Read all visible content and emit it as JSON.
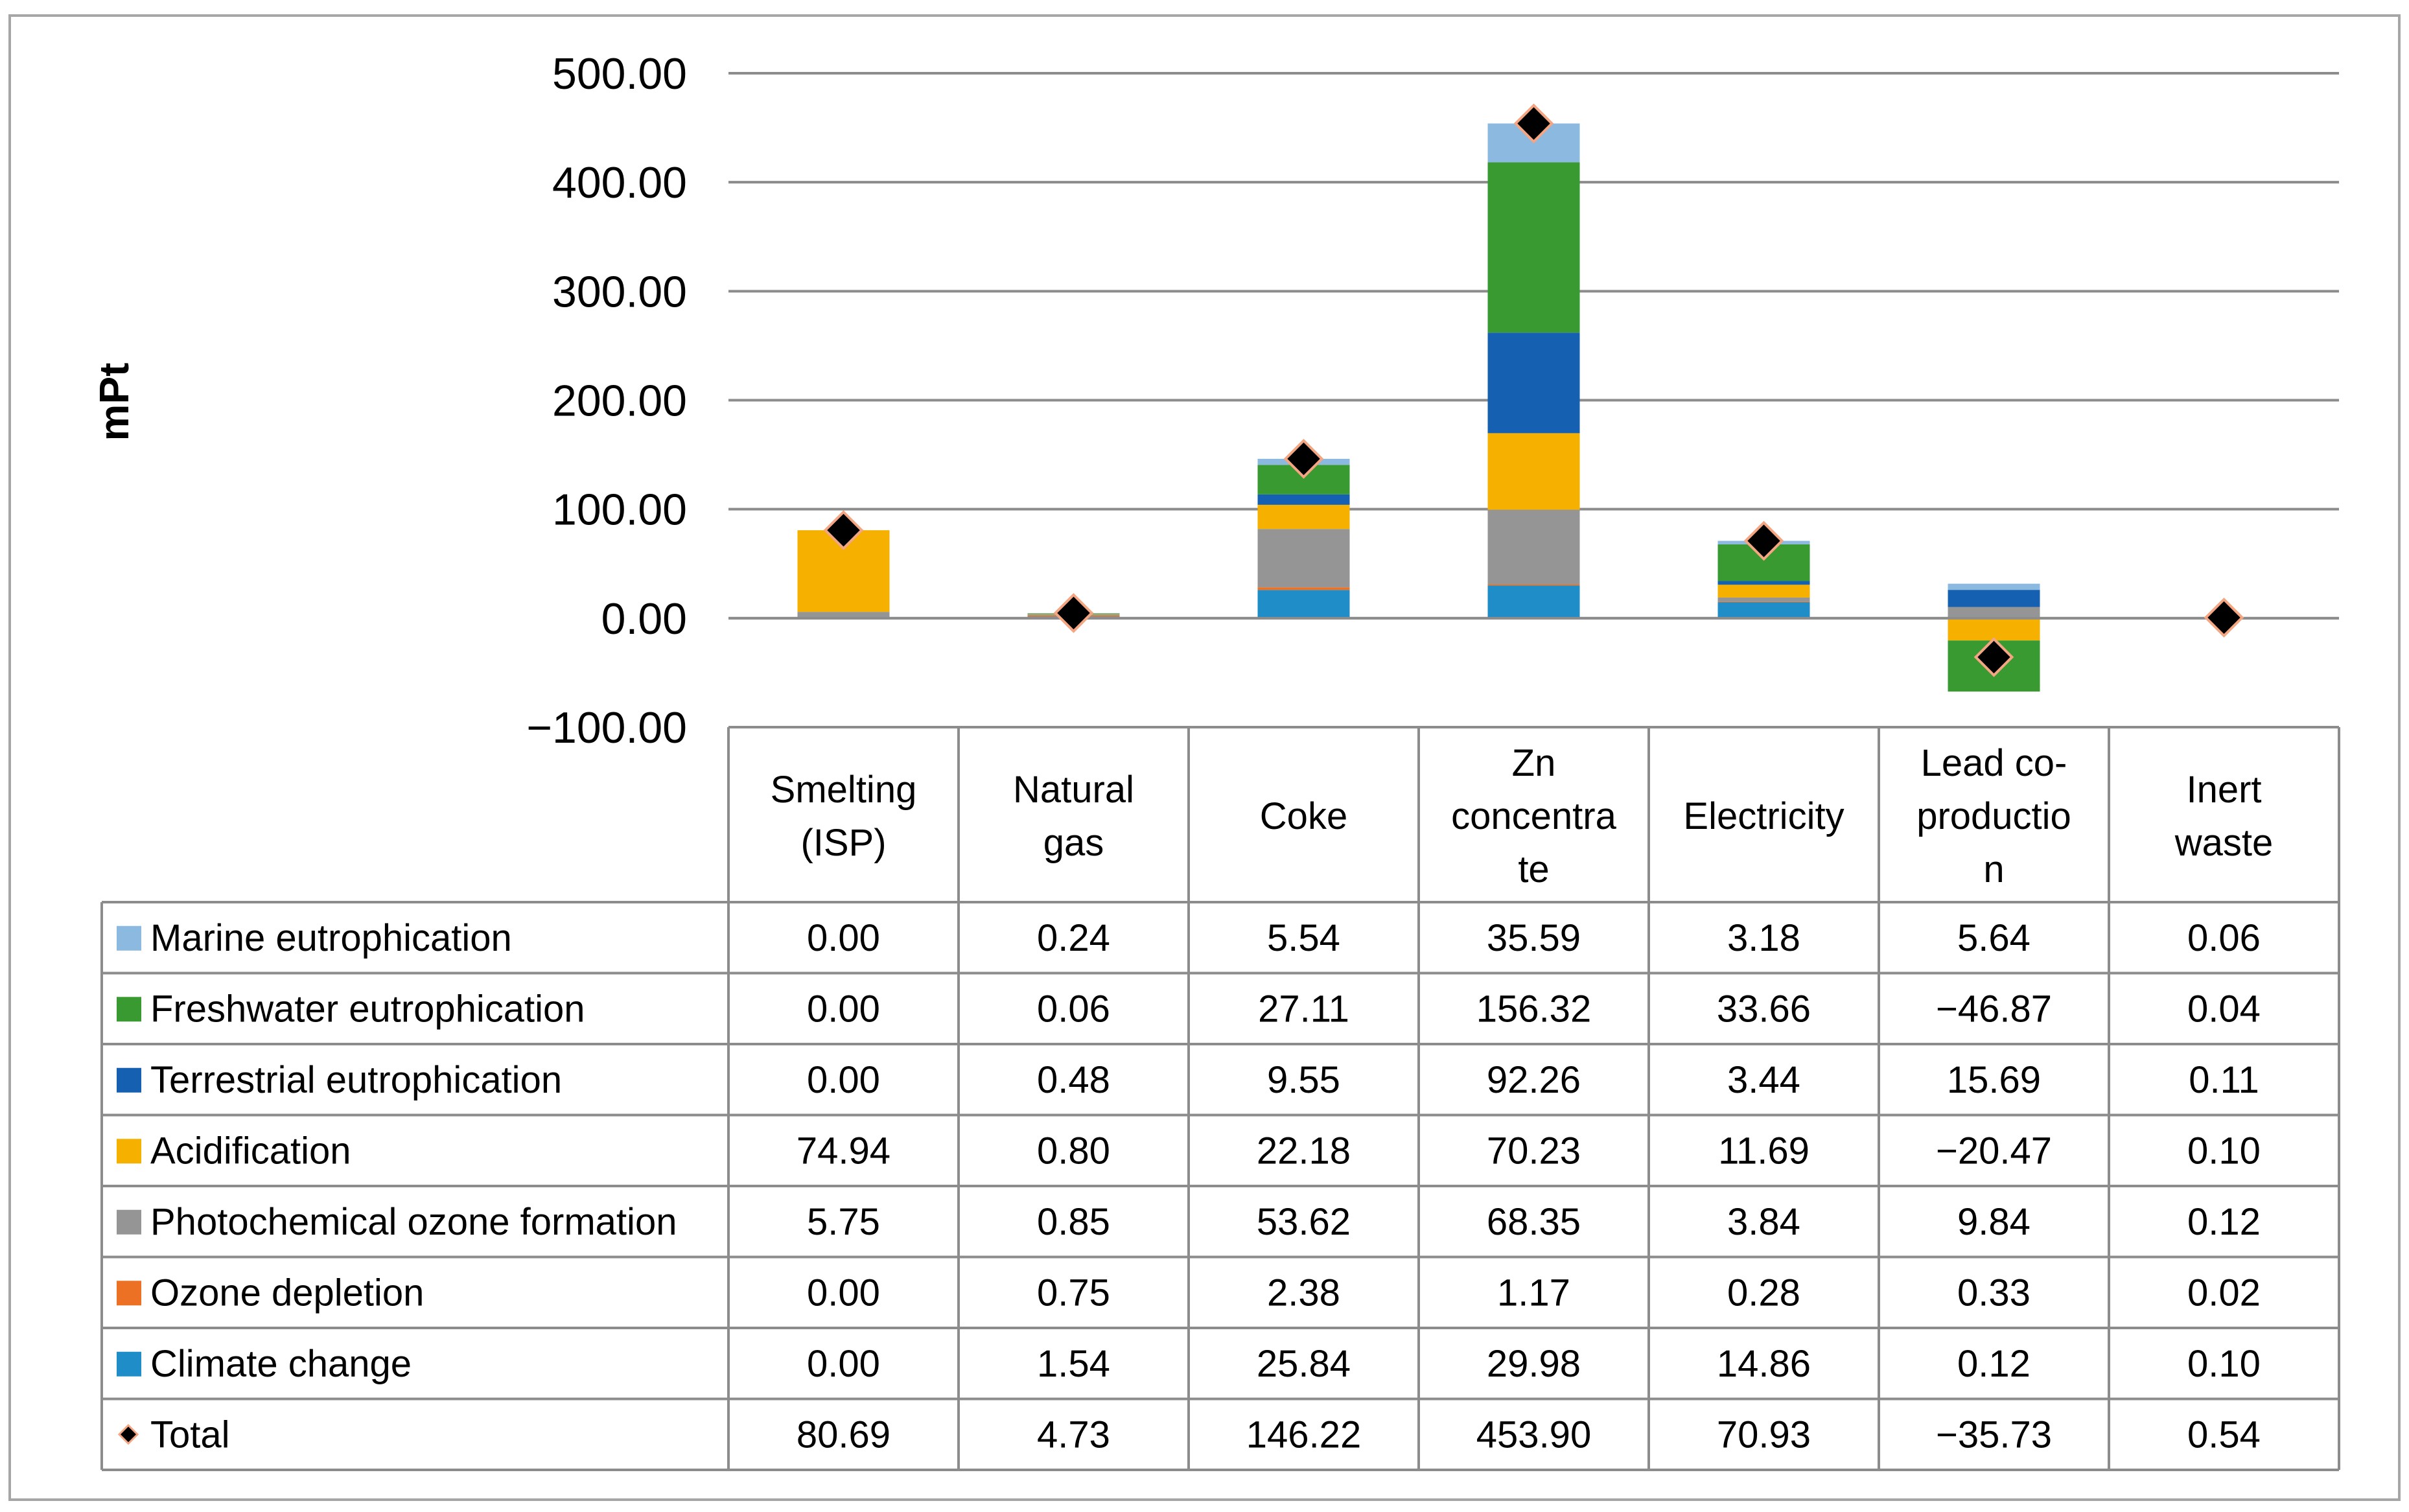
{
  "chart_data": {
    "type": "bar",
    "stacked": true,
    "ylabel": "mPt",
    "ylim": [
      -100,
      500
    ],
    "yticks": [
      500,
      400,
      300,
      200,
      100,
      0,
      -100
    ],
    "ytick_labels": [
      "500.00",
      "400.00",
      "300.00",
      "200.00",
      "100.00",
      "0.00",
      "−100.00"
    ],
    "grid": true,
    "categories": [
      [
        "Smelting",
        "(ISP)"
      ],
      [
        "Natural",
        "gas"
      ],
      [
        "Coke"
      ],
      [
        "Zn",
        "concentra",
        "te"
      ],
      [
        "Electricity"
      ],
      [
        "Lead co-",
        "productio",
        "n"
      ],
      [
        "Inert",
        "waste"
      ]
    ],
    "series": [
      {
        "name": "Marine eutrophication",
        "color": "#8cb9e0",
        "values": [
          0.0,
          0.24,
          5.54,
          35.59,
          3.18,
          5.64,
          0.06
        ],
        "labels": [
          "0.00",
          "0.24",
          "5.54",
          "35.59",
          "3.18",
          "5.64",
          "0.06"
        ]
      },
      {
        "name": "Freshwater eutrophication",
        "color": "#3a9a32",
        "values": [
          0.0,
          0.06,
          27.11,
          156.32,
          33.66,
          -46.87,
          0.04
        ],
        "labels": [
          "0.00",
          "0.06",
          "27.11",
          "156.32",
          "33.66",
          "−46.87",
          "0.04"
        ]
      },
      {
        "name": "Terrestrial eutrophication",
        "color": "#1560b0",
        "values": [
          0.0,
          0.48,
          9.55,
          92.26,
          3.44,
          15.69,
          0.11
        ],
        "labels": [
          "0.00",
          "0.48",
          "9.55",
          "92.26",
          "3.44",
          "15.69",
          "0.11"
        ]
      },
      {
        "name": "Acidification",
        "color": "#f6b000",
        "values": [
          74.94,
          0.8,
          22.18,
          70.23,
          11.69,
          -20.47,
          0.1
        ],
        "labels": [
          "74.94",
          "0.80",
          "22.18",
          "70.23",
          "11.69",
          "−20.47",
          "0.10"
        ]
      },
      {
        "name": "Photochemical ozone formation",
        "color": "#959595",
        "values": [
          5.75,
          0.85,
          53.62,
          68.35,
          3.84,
          9.84,
          0.12
        ],
        "labels": [
          "5.75",
          "0.85",
          "53.62",
          "68.35",
          "3.84",
          "9.84",
          "0.12"
        ]
      },
      {
        "name": "Ozone depletion",
        "color": "#ed7124",
        "values": [
          0.0,
          0.75,
          2.38,
          1.17,
          0.28,
          0.33,
          0.02
        ],
        "labels": [
          "0.00",
          "0.75",
          "2.38",
          "1.17",
          "0.28",
          "0.33",
          "0.02"
        ]
      },
      {
        "name": "Climate change",
        "color": "#1f8dc8",
        "values": [
          0.0,
          1.54,
          25.84,
          29.98,
          14.86,
          0.12,
          0.1
        ],
        "labels": [
          "0.00",
          "1.54",
          "25.84",
          "29.98",
          "14.86",
          "0.12",
          "0.10"
        ]
      }
    ],
    "total": {
      "name": "Total",
      "marker": "diamond",
      "marker_color": "#000000",
      "marker_edge": "#f4a582",
      "values": [
        80.69,
        4.73,
        146.22,
        453.9,
        70.93,
        -35.73,
        0.54
      ],
      "labels": [
        "80.69",
        "4.73",
        "146.22",
        "453.90",
        "70.93",
        "−35.73",
        "0.54"
      ]
    },
    "data_table": true
  }
}
